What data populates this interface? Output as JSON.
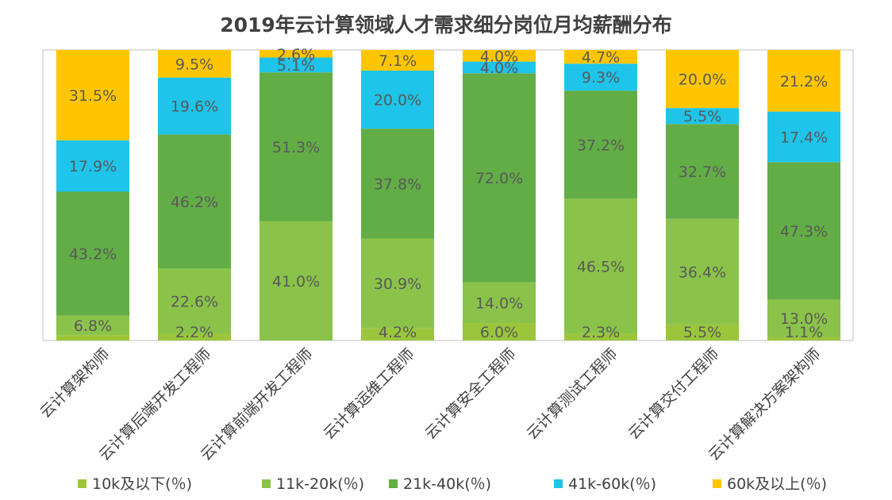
{
  "chart_data": {
    "type": "bar",
    "stacked": true,
    "title": "2019年云计算领域人才需求细分岗位月均薪酬分布",
    "xlabel": "",
    "ylabel": "",
    "ylim": [
      0,
      100
    ],
    "categories": [
      "云计算架构师",
      "云计算后端开发工程师",
      "云计算前端开发工程师",
      "云计算运维工程师",
      "云计算安全工程师",
      "云计算测试工程师",
      "云计算交付工程师",
      "云计算解决方案架构师"
    ],
    "series": [
      {
        "name": "10k及以下(％)",
        "color": "#9BC63B",
        "values": [
          1.9,
          2.2,
          0.0,
          4.2,
          6.0,
          2.3,
          5.5,
          1.1
        ],
        "labels": [
          "",
          "2.2%",
          "",
          "4.2%",
          "6.0%",
          "2.3%",
          "5.5%",
          "1.1%"
        ]
      },
      {
        "name": "11k-20k(％)",
        "color": "#8BC34A",
        "values": [
          6.8,
          22.6,
          41.0,
          30.9,
          14.0,
          46.5,
          36.4,
          13.0
        ],
        "labels": [
          "6.8%",
          "22.6%",
          "41.0%",
          "30.9%",
          "14.0%",
          "46.5%",
          "36.4%",
          "13.0%"
        ]
      },
      {
        "name": "21k-40k(％)",
        "color": "#62AD46",
        "values": [
          43.2,
          46.2,
          51.3,
          37.8,
          72.0,
          37.2,
          32.7,
          47.3
        ],
        "labels": [
          "43.2%",
          "46.2%",
          "51.3%",
          "37.8%",
          "72.0%",
          "37.2%",
          "32.7%",
          "47.3%"
        ]
      },
      {
        "name": "41k-60k(％)",
        "color": "#1EC4EA",
        "values": [
          17.9,
          19.6,
          5.1,
          20.0,
          4.0,
          9.3,
          5.5,
          17.4
        ],
        "labels": [
          "17.9%",
          "19.6%",
          "5.1%",
          "20.0%",
          "4.0%",
          "9.3%",
          "5.5%",
          "17.4%"
        ]
      },
      {
        "name": "60k及以上(％)",
        "color": "#FFC600",
        "values": [
          31.5,
          9.5,
          2.6,
          7.1,
          4.0,
          4.7,
          20.0,
          21.2
        ],
        "labels": [
          "31.5%",
          "9.5%",
          "2.6%",
          "7.1%",
          "4.0%",
          "4.7%",
          "20.0%",
          "21.2%"
        ]
      }
    ],
    "legend": {
      "position": "bottom"
    }
  }
}
